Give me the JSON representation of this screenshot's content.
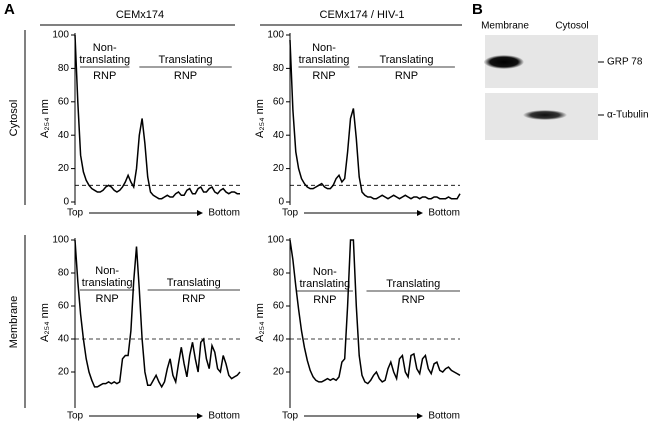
{
  "panel_labels": [
    "A",
    "B"
  ],
  "column_titles": [
    "CEMx174",
    "CEMx174 / HIV-1"
  ],
  "row_labels": [
    "Cytosol",
    "Membrane"
  ],
  "chart_data": [
    {
      "type": "line",
      "ylabel": "A₂₅₄ nm",
      "ylim": [
        0,
        100
      ],
      "yticks": [
        0,
        20,
        40,
        60,
        80,
        100
      ],
      "color": "#000000",
      "threshold": 10,
      "x_start": "Top",
      "x_end": "Bottom",
      "annotations": [
        [
          "Non-",
          "translating",
          "RNP"
        ],
        [
          "Translating",
          "RNP"
        ]
      ],
      "values": [
        100,
        60,
        28,
        18,
        13,
        10,
        8,
        7,
        6,
        6,
        7,
        9,
        10,
        9,
        7,
        6,
        7,
        9,
        12,
        16,
        12,
        9,
        20,
        40,
        50,
        35,
        15,
        6,
        4,
        3,
        2,
        2,
        3,
        4,
        3,
        3,
        5,
        6,
        4,
        4,
        7,
        8,
        5,
        5,
        8,
        9,
        6,
        6,
        8,
        9,
        6,
        5,
        7,
        8,
        6,
        5,
        6,
        6,
        5,
        5
      ]
    },
    {
      "type": "line",
      "ylabel": "A₂₅₄ nm",
      "ylim": [
        0,
        100
      ],
      "yticks": [
        0,
        20,
        40,
        60,
        80,
        100
      ],
      "color": "#000000",
      "threshold": 10,
      "x_start": "Top",
      "x_end": "Bottom",
      "annotations": [
        [
          "Non-",
          "translating",
          "RNP"
        ],
        [
          "Translating",
          "RNP"
        ]
      ],
      "values": [
        97,
        55,
        30,
        20,
        14,
        11,
        9,
        8,
        8,
        9,
        10,
        11,
        9,
        8,
        8,
        10,
        14,
        16,
        12,
        14,
        30,
        50,
        56,
        38,
        15,
        6,
        4,
        3,
        3,
        2,
        2,
        3,
        4,
        3,
        2,
        3,
        4,
        3,
        2,
        3,
        4,
        3,
        2,
        3,
        3,
        2,
        3,
        3,
        2,
        2,
        3,
        3,
        2,
        2,
        2,
        3,
        2,
        2,
        2,
        5
      ]
    },
    {
      "type": "line",
      "ylabel": "A₂₅₄ nm",
      "ylim": [
        0,
        100
      ],
      "yticks": [
        20,
        40,
        60,
        80,
        100
      ],
      "color": "#000000",
      "threshold": 40,
      "x_start": "Top",
      "x_end": "Bottom",
      "annotations": [
        [
          "Non-",
          "translating",
          "RNP"
        ],
        [
          "Translating",
          "RNP"
        ]
      ],
      "values": [
        100,
        75,
        55,
        40,
        28,
        20,
        15,
        11,
        11,
        12,
        13,
        13,
        14,
        13,
        14,
        13,
        14,
        28,
        30,
        30,
        45,
        75,
        96,
        70,
        40,
        20,
        12,
        12,
        15,
        18,
        14,
        11,
        14,
        22,
        28,
        18,
        14,
        25,
        35,
        25,
        17,
        30,
        38,
        28,
        20,
        38,
        40,
        28,
        22,
        36,
        32,
        22,
        20,
        30,
        25,
        18,
        16,
        17,
        18,
        20
      ]
    },
    {
      "type": "line",
      "ylabel": "A₂₅₄ nm",
      "ylim": [
        0,
        100
      ],
      "yticks": [
        20,
        40,
        60,
        80,
        100
      ],
      "color": "#000000",
      "threshold": 40,
      "x_start": "Top",
      "x_end": "Bottom",
      "annotations": [
        [
          "Non-",
          "translating",
          "RNP"
        ],
        [
          "Translating",
          "RNP"
        ]
      ],
      "values": [
        100,
        88,
        72,
        58,
        45,
        35,
        27,
        21,
        17,
        15,
        14,
        14,
        15,
        16,
        15,
        16,
        15,
        17,
        26,
        28,
        60,
        100,
        100,
        60,
        30,
        18,
        14,
        13,
        15,
        18,
        20,
        16,
        14,
        15,
        22,
        26,
        20,
        16,
        28,
        30,
        20,
        17,
        30,
        31,
        22,
        19,
        28,
        30,
        22,
        19,
        25,
        26,
        21,
        20,
        22,
        23,
        21,
        20,
        19,
        18
      ]
    }
  ],
  "blot": {
    "lanes": [
      "Membrane",
      "Cytosol"
    ],
    "bands": [
      "GRP 78",
      "α-Tubulin"
    ]
  }
}
